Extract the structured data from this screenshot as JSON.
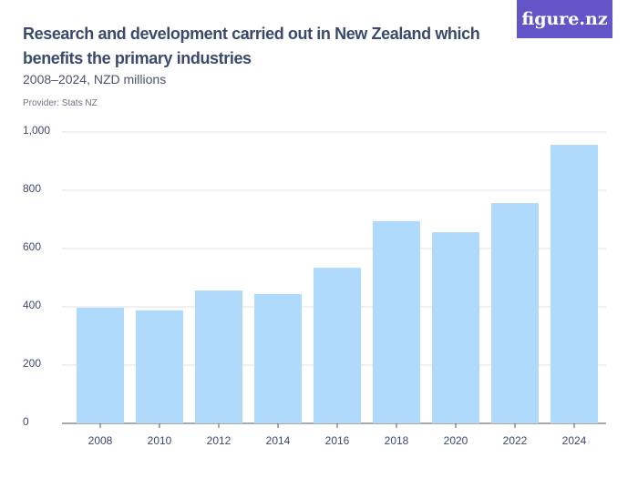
{
  "chart_data": {
    "type": "bar",
    "title": "Research and development carried out in New Zealand which benefits the primary industries",
    "subtitle": "2008–2024, NZD millions",
    "provider": "Provider: Stats NZ",
    "logo": "figure.nz",
    "categories": [
      "2008",
      "2010",
      "2012",
      "2014",
      "2016",
      "2018",
      "2020",
      "2022",
      "2024"
    ],
    "values": [
      397,
      388,
      456,
      444,
      534,
      694,
      656,
      756,
      956
    ],
    "color": "#b0dafb",
    "ylim": [
      0,
      1000
    ],
    "yticks": [
      0,
      200,
      400,
      600,
      800,
      {
        "value": 1000,
        "label": "1,000"
      }
    ],
    "grid": true
  }
}
